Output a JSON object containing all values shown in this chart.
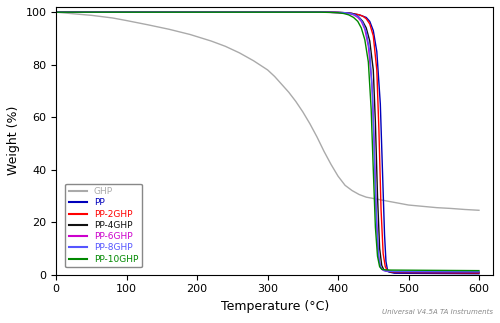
{
  "title": "",
  "xlabel": "Temperature (°C)",
  "ylabel": "Weight (%)",
  "xlim": [
    0,
    620
  ],
  "ylim": [
    0,
    102
  ],
  "xticks": [
    0,
    100,
    200,
    300,
    400,
    500,
    600
  ],
  "yticks": [
    0,
    20,
    40,
    60,
    80,
    100
  ],
  "watermark": "Universal V4.5A TA Instruments",
  "series": [
    {
      "label": "GHP",
      "color": "#aaaaaa",
      "lw": 1.0,
      "points": [
        [
          0,
          100
        ],
        [
          20,
          99.5
        ],
        [
          50,
          98.8
        ],
        [
          80,
          97.8
        ],
        [
          100,
          96.8
        ],
        [
          130,
          95.2
        ],
        [
          160,
          93.5
        ],
        [
          190,
          91.5
        ],
        [
          220,
          89.0
        ],
        [
          240,
          87.0
        ],
        [
          260,
          84.5
        ],
        [
          280,
          81.5
        ],
        [
          300,
          78.0
        ],
        [
          310,
          75.5
        ],
        [
          320,
          72.5
        ],
        [
          330,
          69.5
        ],
        [
          340,
          66.0
        ],
        [
          350,
          62.0
        ],
        [
          360,
          57.5
        ],
        [
          370,
          52.5
        ],
        [
          380,
          47.0
        ],
        [
          390,
          42.0
        ],
        [
          400,
          37.5
        ],
        [
          410,
          34.0
        ],
        [
          420,
          32.0
        ],
        [
          430,
          30.5
        ],
        [
          440,
          29.5
        ],
        [
          450,
          29.0
        ],
        [
          460,
          28.5
        ],
        [
          470,
          28.0
        ],
        [
          480,
          27.5
        ],
        [
          490,
          27.0
        ],
        [
          500,
          26.5
        ],
        [
          520,
          26.0
        ],
        [
          540,
          25.5
        ],
        [
          560,
          25.2
        ],
        [
          580,
          24.8
        ],
        [
          600,
          24.5
        ]
      ]
    },
    {
      "label": "PP",
      "color": "#0000bb",
      "lw": 1.0,
      "points": [
        [
          0,
          100
        ],
        [
          100,
          100
        ],
        [
          200,
          100
        ],
        [
          300,
          100
        ],
        [
          350,
          100
        ],
        [
          380,
          100
        ],
        [
          400,
          99.9
        ],
        [
          410,
          99.8
        ],
        [
          420,
          99.5
        ],
        [
          430,
          99.0
        ],
        [
          440,
          98.0
        ],
        [
          445,
          96.5
        ],
        [
          450,
          93.0
        ],
        [
          455,
          85.0
        ],
        [
          460,
          65.0
        ],
        [
          463,
          40.0
        ],
        [
          466,
          15.0
        ],
        [
          468,
          5.0
        ],
        [
          470,
          2.0
        ],
        [
          472,
          1.0
        ],
        [
          480,
          0.5
        ],
        [
          600,
          0.3
        ]
      ]
    },
    {
      "label": "PP-2GHP",
      "color": "#ff0000",
      "lw": 1.0,
      "points": [
        [
          0,
          100
        ],
        [
          100,
          100
        ],
        [
          200,
          100
        ],
        [
          300,
          100
        ],
        [
          350,
          100
        ],
        [
          380,
          100
        ],
        [
          400,
          99.9
        ],
        [
          410,
          99.8
        ],
        [
          420,
          99.5
        ],
        [
          430,
          99.0
        ],
        [
          435,
          98.5
        ],
        [
          440,
          97.5
        ],
        [
          445,
          95.5
        ],
        [
          450,
          91.0
        ],
        [
          455,
          78.0
        ],
        [
          458,
          55.0
        ],
        [
          461,
          25.0
        ],
        [
          464,
          8.0
        ],
        [
          467,
          3.0
        ],
        [
          470,
          1.5
        ],
        [
          475,
          1.0
        ],
        [
          480,
          0.8
        ],
        [
          600,
          0.6
        ]
      ]
    },
    {
      "label": "PP-4GHP",
      "color": "#111111",
      "lw": 1.0,
      "points": [
        [
          0,
          100
        ],
        [
          100,
          100
        ],
        [
          200,
          100
        ],
        [
          300,
          100
        ],
        [
          350,
          100
        ],
        [
          380,
          100
        ],
        [
          400,
          99.9
        ],
        [
          410,
          99.8
        ],
        [
          420,
          99.5
        ],
        [
          425,
          99.0
        ],
        [
          430,
          98.0
        ],
        [
          435,
          96.5
        ],
        [
          440,
          94.0
        ],
        [
          445,
          89.0
        ],
        [
          450,
          78.0
        ],
        [
          453,
          58.0
        ],
        [
          456,
          30.0
        ],
        [
          459,
          10.0
        ],
        [
          462,
          3.5
        ],
        [
          465,
          1.8
        ],
        [
          470,
          1.2
        ],
        [
          480,
          1.0
        ],
        [
          600,
          0.8
        ]
      ]
    },
    {
      "label": "PP-6GHP",
      "color": "#cc00cc",
      "lw": 1.0,
      "points": [
        [
          0,
          100
        ],
        [
          100,
          100
        ],
        [
          200,
          100
        ],
        [
          300,
          100
        ],
        [
          350,
          100
        ],
        [
          380,
          100
        ],
        [
          395,
          99.9
        ],
        [
          405,
          99.8
        ],
        [
          415,
          99.5
        ],
        [
          422,
          99.0
        ],
        [
          428,
          98.0
        ],
        [
          433,
          96.5
        ],
        [
          438,
          93.5
        ],
        [
          443,
          87.0
        ],
        [
          448,
          73.0
        ],
        [
          451,
          52.0
        ],
        [
          454,
          25.0
        ],
        [
          457,
          8.0
        ],
        [
          460,
          3.0
        ],
        [
          463,
          1.8
        ],
        [
          468,
          1.3
        ],
        [
          480,
          1.1
        ],
        [
          600,
          1.0
        ]
      ]
    },
    {
      "label": "PP-8GHP",
      "color": "#5555ff",
      "lw": 1.0,
      "points": [
        [
          0,
          100
        ],
        [
          100,
          100
        ],
        [
          200,
          100
        ],
        [
          300,
          100
        ],
        [
          350,
          100
        ],
        [
          380,
          100
        ],
        [
          400,
          99.9
        ],
        [
          410,
          99.8
        ],
        [
          418,
          99.5
        ],
        [
          424,
          99.0
        ],
        [
          430,
          98.0
        ],
        [
          435,
          96.0
        ],
        [
          440,
          92.5
        ],
        [
          445,
          85.0
        ],
        [
          449,
          68.0
        ],
        [
          452,
          42.0
        ],
        [
          455,
          18.0
        ],
        [
          458,
          6.0
        ],
        [
          461,
          2.5
        ],
        [
          465,
          1.5
        ],
        [
          470,
          1.3
        ],
        [
          480,
          1.2
        ],
        [
          600,
          1.1
        ]
      ]
    },
    {
      "label": "PP-10GHP",
      "color": "#008800",
      "lw": 1.0,
      "points": [
        [
          0,
          100
        ],
        [
          100,
          100
        ],
        [
          200,
          100
        ],
        [
          300,
          100
        ],
        [
          350,
          100
        ],
        [
          375,
          100
        ],
        [
          390,
          99.9
        ],
        [
          400,
          99.8
        ],
        [
          408,
          99.5
        ],
        [
          415,
          99.0
        ],
        [
          422,
          98.0
        ],
        [
          428,
          96.5
        ],
        [
          433,
          94.0
        ],
        [
          438,
          89.5
        ],
        [
          443,
          81.0
        ],
        [
          447,
          63.0
        ],
        [
          450,
          40.0
        ],
        [
          453,
          18.0
        ],
        [
          456,
          7.0
        ],
        [
          459,
          3.0
        ],
        [
          462,
          2.0
        ],
        [
          467,
          1.8
        ],
        [
          475,
          1.7
        ],
        [
          600,
          1.5
        ]
      ]
    }
  ],
  "legend_items": [
    {
      "label": "GHP",
      "color": "#aaaaaa"
    },
    {
      "label": "PP",
      "color": "#0000bb"
    },
    {
      "label": "PP-2GHP",
      "color": "#ff0000"
    },
    {
      "label": "PP-4GHP",
      "color": "#111111"
    },
    {
      "label": "PP-6GHP",
      "color": "#cc00cc"
    },
    {
      "label": "PP-8GHP",
      "color": "#5555ff"
    },
    {
      "label": "PP-10GHP",
      "color": "#008800"
    }
  ]
}
